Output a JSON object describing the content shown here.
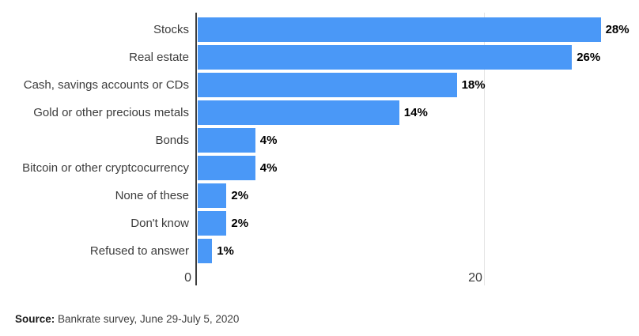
{
  "chart_data": {
    "type": "bar",
    "orientation": "horizontal",
    "title": "",
    "xlabel": "",
    "ylabel": "",
    "categories": [
      "Stocks",
      "Real estate",
      "Cash, savings accounts or CDs",
      "Gold or other precious metals",
      "Bonds",
      "Bitcoin or other cryptcocurrency",
      "None of these",
      "Don't know",
      "Refused to answer"
    ],
    "values": [
      28,
      26,
      18,
      14,
      4,
      4,
      2,
      2,
      1
    ],
    "display_values": [
      "28%",
      "26%",
      "18%",
      "14%",
      "4%",
      "4%",
      "2%",
      "2%",
      "1%"
    ],
    "xticks": [
      {
        "value": 0,
        "label": "0"
      },
      {
        "value": 20,
        "label": "20"
      }
    ],
    "xlim": [
      0,
      30.8
    ],
    "grid": "vertical-at-20-only",
    "legend": "none",
    "bar_color": "#4a98f7",
    "axis_color": "#3d3d3d",
    "gridline_color": "#e4e4e4",
    "category_label_color": "#3c3c3c",
    "value_label_color": "#000000"
  },
  "source": {
    "prefix": "Source:",
    "text": " Bankrate survey, June 29-July 5, 2020"
  }
}
